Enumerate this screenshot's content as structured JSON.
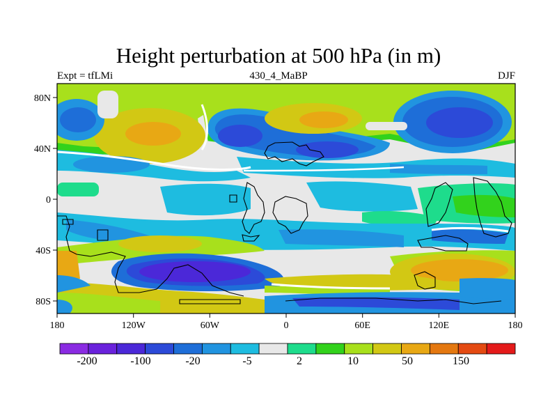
{
  "figure": {
    "title": "Height perturbation at 500 hPa (in m)",
    "left_label": "Expt = tfLMi",
    "center_label": "430_4_MaBP",
    "right_label": "DJF"
  },
  "map": {
    "x_ticks": [
      "180",
      "120W",
      "60W",
      "0",
      "60E",
      "120E",
      "180"
    ],
    "y_ticks": [
      "80N",
      "40N",
      "0",
      "40S",
      "80S"
    ]
  },
  "colorbar": {
    "colors": [
      "#8a2be2",
      "#6a22dc",
      "#4b28d8",
      "#2c4ad8",
      "#1e6ed8",
      "#2194e0",
      "#1ebce0",
      "#e8e8e8",
      "#1edc8c",
      "#32d21c",
      "#a8e01c",
      "#d2c814",
      "#e8a814",
      "#e47810",
      "#e44a12",
      "#e41a1a"
    ],
    "labels": [
      "-200",
      "-100",
      "-20",
      "-5",
      "2",
      "10",
      "50",
      "150"
    ]
  }
}
